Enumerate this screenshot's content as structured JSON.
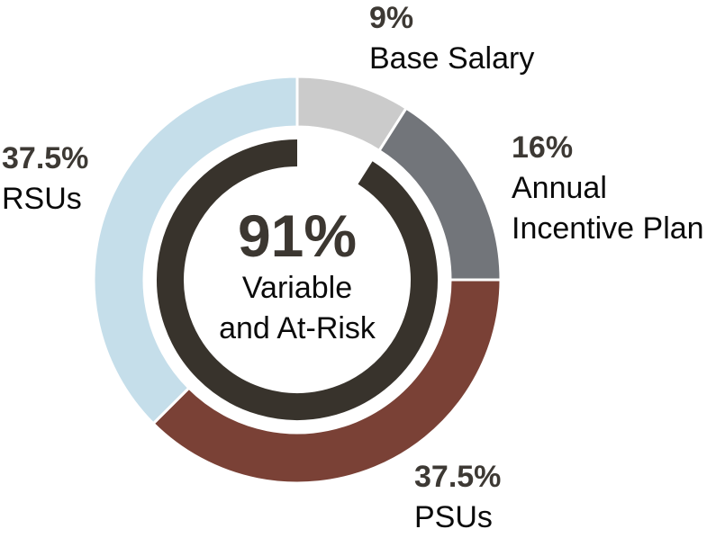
{
  "chart_data": {
    "type": "donut",
    "unit": "percent",
    "start_at_deg": 0,
    "clockwise": true,
    "separator_color": "#ffffff",
    "segments": [
      {
        "name": "Base Salary",
        "pct_label": "9%",
        "value": 9,
        "color": "#cbcbcb",
        "label_lines": [
          "Base Salary"
        ]
      },
      {
        "name": "Annual Incentive Plan",
        "pct_label": "16%",
        "value": 16,
        "color": "#72757a",
        "label_lines": [
          "Annual",
          "Incentive Plan"
        ]
      },
      {
        "name": "PSUs",
        "pct_label": "37.5%",
        "value": 37.5,
        "color": "#7a4136",
        "label_lines": [
          "PSUs"
        ]
      },
      {
        "name": "RSUs",
        "pct_label": "37.5%",
        "value": 37.5,
        "color": "#c5deea",
        "label_lines": [
          "RSUs"
        ]
      }
    ],
    "inner_ring": {
      "value": 91,
      "gap_aligned_with": "Base Salary",
      "color": "#38332c"
    },
    "center_label": {
      "pct": "91%",
      "lines": [
        "Variable",
        "and At-Risk"
      ]
    }
  },
  "text_colors": {
    "pct": "#3d3934",
    "name": "#0a0a0a",
    "center_pct": "#3c3731",
    "center_lines": "#0a0a0a"
  }
}
